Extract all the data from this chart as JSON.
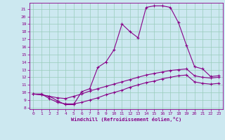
{
  "xlabel": "Windchill (Refroidissement éolien,°C)",
  "bg_color": "#cce8f0",
  "line_color": "#880088",
  "grid_color": "#99ccbb",
  "xlim": [
    -0.5,
    23.5
  ],
  "ylim": [
    7.8,
    21.8
  ],
  "xticks": [
    0,
    1,
    2,
    3,
    4,
    5,
    6,
    7,
    8,
    9,
    10,
    11,
    12,
    13,
    14,
    15,
    16,
    17,
    18,
    19,
    20,
    21,
    22,
    23
  ],
  "yticks": [
    8,
    9,
    10,
    11,
    12,
    13,
    14,
    15,
    16,
    17,
    18,
    19,
    20,
    21
  ],
  "line1_x": [
    0,
    1,
    2,
    3,
    4,
    5,
    6,
    7,
    8,
    9,
    10,
    11,
    12,
    13,
    14,
    15,
    16,
    17,
    18,
    19,
    20,
    21,
    22,
    23
  ],
  "line1_y": [
    9.8,
    9.7,
    9.5,
    9.3,
    9.2,
    9.5,
    9.8,
    10.2,
    10.5,
    10.8,
    11.1,
    11.4,
    11.7,
    12.0,
    12.3,
    12.5,
    12.7,
    12.9,
    13.0,
    13.1,
    12.2,
    12.0,
    11.9,
    12.0
  ],
  "line2_x": [
    0,
    1,
    2,
    3,
    4,
    5,
    6,
    7,
    8,
    9,
    10,
    11,
    12,
    13,
    14,
    15,
    16,
    17,
    18,
    19,
    20,
    21,
    22,
    23
  ],
  "line2_y": [
    9.8,
    9.8,
    9.2,
    8.7,
    8.5,
    8.5,
    8.7,
    9.0,
    9.3,
    9.7,
    10.0,
    10.3,
    10.7,
    11.0,
    11.3,
    11.5,
    11.8,
    12.0,
    12.2,
    12.3,
    11.4,
    11.2,
    11.1,
    11.2
  ],
  "line3_x": [
    0,
    1,
    2,
    3,
    4,
    5,
    6,
    7,
    8,
    9,
    10,
    11,
    12,
    13,
    14,
    15,
    16,
    17,
    18,
    19,
    20,
    21,
    22,
    23
  ],
  "line3_y": [
    9.8,
    9.7,
    9.5,
    8.9,
    8.4,
    8.4,
    10.1,
    10.5,
    13.3,
    14.0,
    15.6,
    19.0,
    18.0,
    17.2,
    21.2,
    21.4,
    21.4,
    21.2,
    19.2,
    16.2,
    13.4,
    13.1,
    12.1,
    12.2
  ],
  "marker": "+",
  "markersize": 3,
  "linewidth": 0.8
}
